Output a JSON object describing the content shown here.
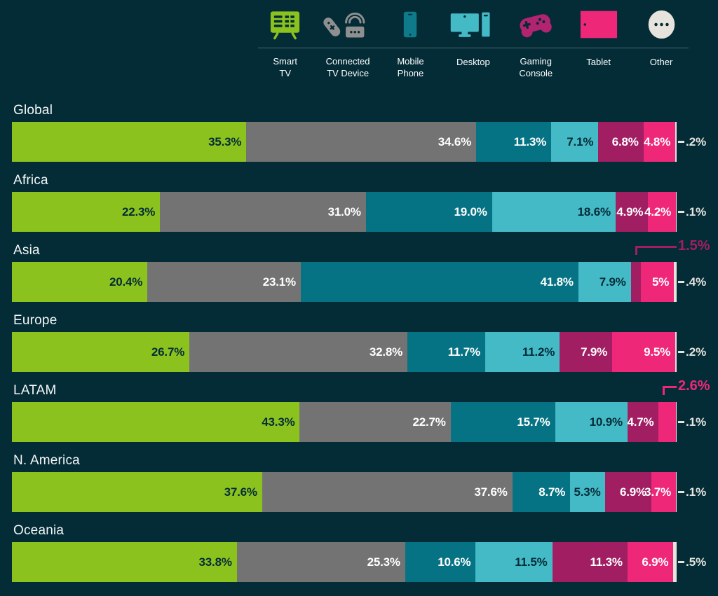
{
  "colors": {
    "background": "#032C37",
    "smart_tv": "#8CC21E",
    "connected_tv_device": "#737373",
    "mobile_phone": "#067384",
    "desktop": "#45BAC7",
    "gaming_console": "#A21E63",
    "tablet": "#EF2779",
    "other": "#E7E4DE",
    "dark_text_on_light_bars": "#032C37",
    "light_text": "#FFFFFF"
  },
  "legend": {
    "items": [
      {
        "label": "Smart\nTV",
        "icon": "smart-tv-icon",
        "color": "#8CC21E"
      },
      {
        "label": "Connected\nTV Device",
        "icon": "connected-tv-device-icon",
        "color": "#8F8F8F"
      },
      {
        "label": "Mobile\nPhone",
        "icon": "mobile-phone-icon",
        "color": "#0E7A8A"
      },
      {
        "label": "Desktop",
        "icon": "desktop-icon",
        "color": "#45BAC7"
      },
      {
        "label": "Gaming\nConsole",
        "icon": "gaming-console-icon",
        "color": "#B22470"
      },
      {
        "label": "Tablet",
        "icon": "tablet-icon",
        "color": "#EF2779"
      },
      {
        "label": "Other",
        "icon": "other-icon",
        "color": "#E7E4DE"
      }
    ]
  },
  "chart_data": {
    "type": "bar",
    "orientation": "horizontal",
    "stacked": true,
    "unit": "%",
    "xlim": [
      0,
      100
    ],
    "grid": false,
    "legend_position": "top",
    "series": [
      "Smart TV",
      "Connected TV Device",
      "Mobile Phone",
      "Desktop",
      "Gaming Console",
      "Tablet",
      "Other"
    ],
    "series_colors": [
      "#8CC21E",
      "#737373",
      "#067384",
      "#45BAC7",
      "#A21E63",
      "#EF2779",
      "#E7E4DE"
    ],
    "label_text_colors": [
      "#032C37",
      "#FFFFFF",
      "#FFFFFF",
      "#032C37",
      "#FFFFFF",
      "#FFFFFF",
      "#E7E4DE"
    ],
    "rows": [
      {
        "region": "Global",
        "values": [
          35.3,
          34.6,
          11.3,
          7.1,
          6.8,
          4.8,
          0.2
        ],
        "labels": [
          "35.3%",
          "34.6%",
          "11.3%",
          "7.1%",
          "6.8%",
          "4.8%",
          ".2%"
        ]
      },
      {
        "region": "Africa",
        "values": [
          22.3,
          31.0,
          19.0,
          18.6,
          4.9,
          4.2,
          0.1
        ],
        "labels": [
          "22.3%",
          "31.0%",
          "19.0%",
          "18.6%",
          "4.9%",
          "4.2%",
          ".1%"
        ]
      },
      {
        "region": "Asia",
        "values": [
          20.4,
          23.1,
          41.8,
          7.9,
          1.5,
          5,
          0.4
        ],
        "labels": [
          "20.4%",
          "23.1%",
          "41.8%",
          "7.9%",
          "",
          "5%",
          ".4%"
        ],
        "annotation": {
          "series_index": 4,
          "label": "1.5%"
        }
      },
      {
        "region": "Europe",
        "values": [
          26.7,
          32.8,
          11.7,
          11.2,
          7.9,
          9.5,
          0.2
        ],
        "labels": [
          "26.7%",
          "32.8%",
          "11.7%",
          "11.2%",
          "7.9%",
          "9.5%",
          ".2%"
        ]
      },
      {
        "region": "LATAM",
        "values": [
          43.3,
          22.7,
          15.7,
          10.9,
          4.7,
          2.6,
          0.1
        ],
        "labels": [
          "43.3%",
          "22.7%",
          "15.7%",
          "10.9%",
          "4.7%",
          "",
          ".1%"
        ],
        "annotation": {
          "series_index": 5,
          "label": "2.6%"
        }
      },
      {
        "region": "N. America",
        "values": [
          37.6,
          37.6,
          8.7,
          5.3,
          6.9,
          3.7,
          0.1
        ],
        "labels": [
          "37.6%",
          "37.6%",
          "8.7%",
          "5.3%",
          "6.9%",
          "3.7%",
          ".1%"
        ]
      },
      {
        "region": "Oceania",
        "values": [
          33.8,
          25.3,
          10.6,
          11.5,
          11.3,
          6.9,
          0.5
        ],
        "labels": [
          "33.8%",
          "25.3%",
          "10.6%",
          "11.5%",
          "11.3%",
          "6.9%",
          ".5%"
        ]
      }
    ]
  }
}
